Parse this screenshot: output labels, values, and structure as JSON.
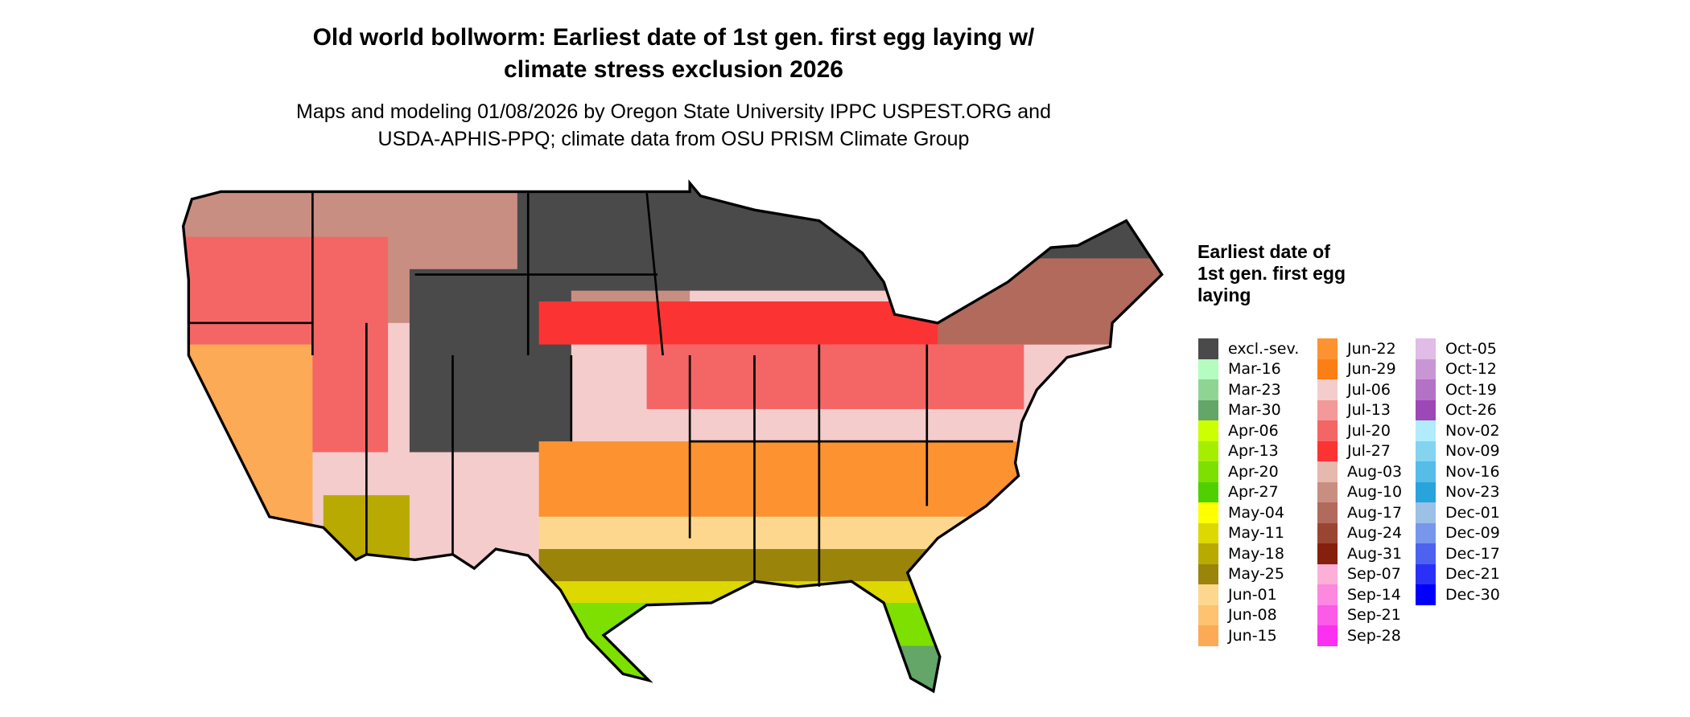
{
  "title_line1": "Old world bollworm: Earliest date of 1st gen. first egg laying w/",
  "title_line2": "climate stress exclusion 2026",
  "subtitle_line1": "Maps and modeling 01/08/2026 by Oregon State University IPPC USPEST.ORG and",
  "subtitle_line2": "USDA-APHIS-PPQ; climate data from OSU PRISM Climate Group",
  "legend": {
    "title": "Earliest date of 1st gen. first egg laying",
    "columns": [
      [
        {
          "label": "excl.-sev.",
          "color": "#4a4a4a"
        },
        {
          "label": "Mar-16",
          "color": "#b4fcc0"
        },
        {
          "label": "Mar-23",
          "color": "#90d494"
        },
        {
          "label": "Mar-30",
          "color": "#63a668"
        },
        {
          "label": "Apr-06",
          "color": "#ccff00"
        },
        {
          "label": "Apr-13",
          "color": "#a6ee00"
        },
        {
          "label": "Apr-20",
          "color": "#7de000"
        },
        {
          "label": "Apr-27",
          "color": "#4fd000"
        },
        {
          "label": "May-04",
          "color": "#ffff00"
        },
        {
          "label": "May-11",
          "color": "#dcd800"
        },
        {
          "label": "May-18",
          "color": "#b8aa00"
        },
        {
          "label": "May-25",
          "color": "#9a840a"
        },
        {
          "label": "Jun-01",
          "color": "#fed78e"
        },
        {
          "label": "Jun-08",
          "color": "#fec270"
        },
        {
          "label": "Jun-15",
          "color": "#fcaa55"
        }
      ],
      [
        {
          "label": "Jun-22",
          "color": "#fc9330"
        },
        {
          "label": "Jun-29",
          "color": "#fc7f16"
        },
        {
          "label": "Jul-06",
          "color": "#f4cccc"
        },
        {
          "label": "Jul-13",
          "color": "#f49999"
        },
        {
          "label": "Jul-20",
          "color": "#f46666"
        },
        {
          "label": "Jul-27",
          "color": "#fc3333"
        },
        {
          "label": "Aug-03",
          "color": "#e6b8ae"
        },
        {
          "label": "Aug-10",
          "color": "#c98e82"
        },
        {
          "label": "Aug-17",
          "color": "#b16a5c"
        },
        {
          "label": "Aug-24",
          "color": "#9a4432"
        },
        {
          "label": "Aug-31",
          "color": "#85200c"
        },
        {
          "label": "Sep-07",
          "color": "#fcb0d8"
        },
        {
          "label": "Sep-14",
          "color": "#fc88e0"
        },
        {
          "label": "Sep-21",
          "color": "#fc5ae8"
        },
        {
          "label": "Sep-28",
          "color": "#fc30f0"
        }
      ],
      [
        {
          "label": "Oct-05",
          "color": "#e0bce6"
        },
        {
          "label": "Oct-12",
          "color": "#c896d4"
        },
        {
          "label": "Oct-19",
          "color": "#b472c6"
        },
        {
          "label": "Oct-26",
          "color": "#9c48b6"
        },
        {
          "label": "Nov-02",
          "color": "#b0ecfc"
        },
        {
          "label": "Nov-09",
          "color": "#84d4f0"
        },
        {
          "label": "Nov-16",
          "color": "#56bce8"
        },
        {
          "label": "Nov-23",
          "color": "#28a4dc"
        },
        {
          "label": "Dec-01",
          "color": "#9cc0e6"
        },
        {
          "label": "Dec-09",
          "color": "#7896ec"
        },
        {
          "label": "Dec-17",
          "color": "#4e62f0"
        },
        {
          "label": "Dec-21",
          "color": "#2a30f8"
        },
        {
          "label": "Dec-30",
          "color": "#0000fc"
        }
      ]
    ]
  }
}
